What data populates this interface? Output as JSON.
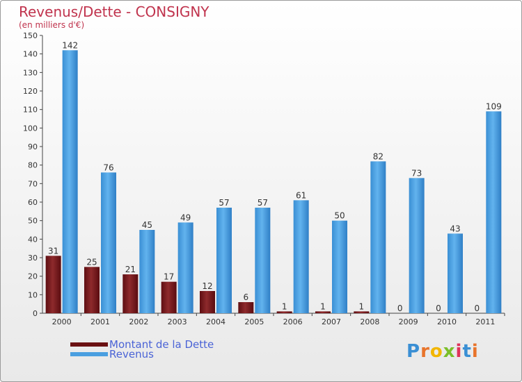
{
  "chart_data": {
    "type": "bar",
    "title": "Revenus/Dette - CONSIGNY",
    "subtitle": "(en milliers d'€)",
    "categories": [
      "2000",
      "2001",
      "2002",
      "2003",
      "2004",
      "2005",
      "2006",
      "2007",
      "2008",
      "2009",
      "2010",
      "2011"
    ],
    "series": [
      {
        "name": "Montant de la Dette",
        "color": "#7a1a1a",
        "values": [
          31,
          25,
          21,
          17,
          12,
          6,
          1,
          1,
          1,
          0,
          0,
          0
        ]
      },
      {
        "name": "Revenus",
        "color": "#4a9fe0",
        "values": [
          142,
          76,
          45,
          49,
          57,
          57,
          61,
          50,
          82,
          73,
          43,
          109
        ]
      }
    ],
    "ylim": [
      0,
      150
    ],
    "yticks": [
      0,
      10,
      20,
      30,
      40,
      50,
      60,
      70,
      80,
      90,
      100,
      110,
      120,
      130,
      140,
      150
    ],
    "grid": false,
    "legend_position": "bottom-left"
  },
  "logo": {
    "text": "Proxiti"
  }
}
